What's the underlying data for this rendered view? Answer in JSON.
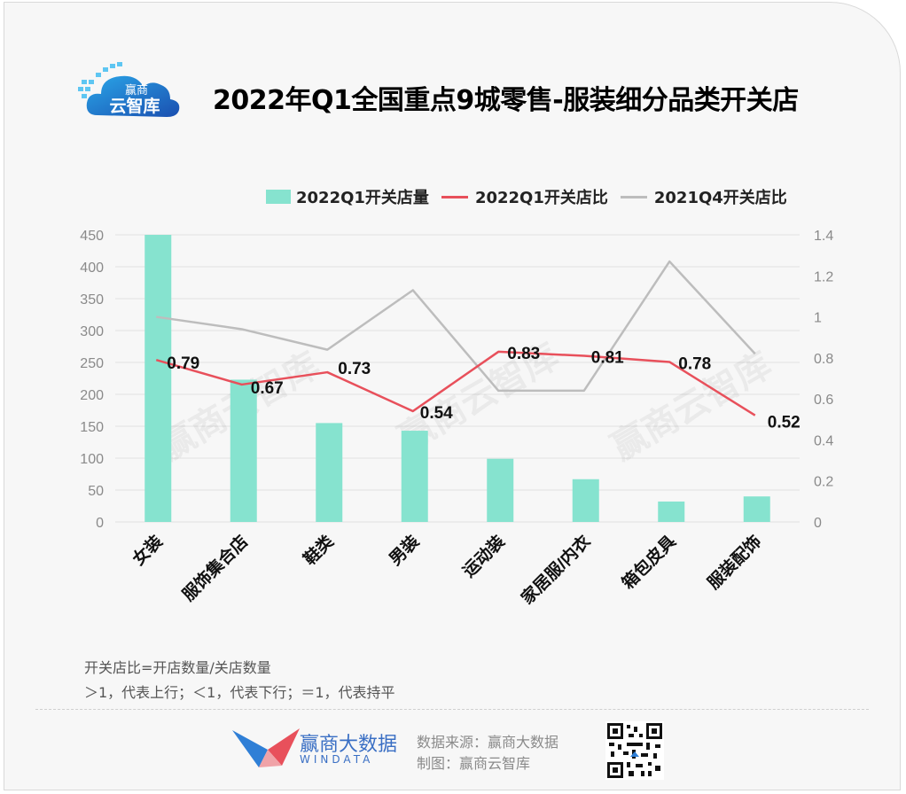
{
  "logo": {
    "text_top": "赢商",
    "text_bottom": "云智库"
  },
  "title": "2022年Q1全国重点9城零售-服装细分品类开关店",
  "legend": [
    {
      "label": "2022Q1开关店量",
      "kind": "bar",
      "color": "#86e3cf"
    },
    {
      "label": "2022Q1开关店比",
      "kind": "line",
      "color": "#e8505b"
    },
    {
      "label": "2021Q4开关店比",
      "kind": "line",
      "color": "#bdbdbd"
    }
  ],
  "chart_data": {
    "type": "bar",
    "categories": [
      "女装",
      "服饰集合店",
      "鞋类",
      "男装",
      "运动装",
      "家居服/内衣",
      "箱包皮具",
      "服装配饰"
    ],
    "series": [
      {
        "name": "2022Q1开关店量",
        "kind": "bar",
        "axis": "left",
        "color": "#86e3cf",
        "values": [
          450,
          223,
          155,
          143,
          99,
          67,
          32,
          40
        ]
      },
      {
        "name": "2022Q1开关店比",
        "kind": "line",
        "axis": "right",
        "color": "#e8505b",
        "values": [
          0.79,
          0.67,
          0.73,
          0.54,
          0.83,
          0.81,
          0.78,
          0.52
        ],
        "labels": [
          "0.79",
          "0.67",
          "0.73",
          "0.54",
          "0.83",
          "0.81",
          "0.78",
          "0.52"
        ]
      },
      {
        "name": "2021Q4开关店比",
        "kind": "line",
        "axis": "right",
        "color": "#bdbdbd",
        "values": [
          1.0,
          0.94,
          0.84,
          1.13,
          0.64,
          0.64,
          1.27,
          0.82
        ]
      }
    ],
    "y_left": {
      "min": 0,
      "max": 450,
      "ticks": [
        "0",
        "50",
        "100",
        "150",
        "200",
        "250",
        "300",
        "350",
        "400",
        "450"
      ]
    },
    "y_right": {
      "min": 0,
      "max": 1.4,
      "ticks": [
        "0",
        "0.2",
        "0.4",
        "0.6",
        "0.8",
        "1",
        "1.2",
        "1.4"
      ]
    },
    "grid": true,
    "legend_position": "top"
  },
  "watermark": "赢商云智库",
  "notes": [
    "开关店比=开店数量/关店数量",
    "＞1，代表上行；＜1，代表下行；＝1，代表持平"
  ],
  "footer": {
    "brand_cn": "赢商大数据",
    "brand_en": "WINDATA",
    "source": "数据来源：赢商大数据",
    "maker": "制图：赢商云智库"
  }
}
